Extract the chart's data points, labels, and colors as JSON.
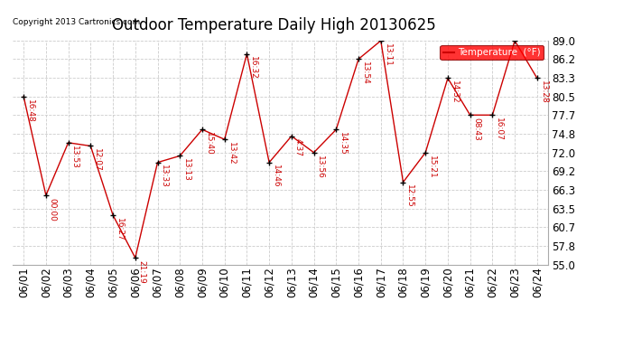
{
  "title": "Outdoor Temperature Daily High 20130625",
  "copyright": "Copyright 2013 Cartronics.com",
  "legend_label": "Temperature  (°F)",
  "dates": [
    "06/01",
    "06/02",
    "06/03",
    "06/04",
    "06/05",
    "06/06",
    "06/07",
    "06/08",
    "06/09",
    "06/10",
    "06/11",
    "06/12",
    "06/13",
    "06/14",
    "06/15",
    "06/16",
    "06/17",
    "06/18",
    "06/19",
    "06/20",
    "06/21",
    "06/22",
    "06/23",
    "06/24"
  ],
  "temps": [
    80.5,
    65.5,
    73.5,
    73.0,
    62.5,
    56.0,
    70.5,
    71.5,
    75.5,
    74.0,
    87.0,
    70.5,
    74.5,
    72.0,
    75.5,
    86.2,
    89.0,
    67.5,
    72.0,
    83.3,
    77.7,
    77.7,
    89.0,
    83.3
  ],
  "times": [
    "16:48",
    "00:00",
    "13:53",
    "12:07",
    "16:27",
    "21:19",
    "13:33",
    "13:13",
    "15:40",
    "13:42",
    "16:32",
    "14:46",
    "4:37",
    "13:56",
    "14:35",
    "13:54",
    "13:11",
    "12:55",
    "15:21",
    "14:32",
    "08:43",
    "16:07",
    "",
    "13:28"
  ],
  "line_color": "#cc0000",
  "marker_color": "#000000",
  "background_color": "#ffffff",
  "grid_color": "#cccccc",
  "ylim": [
    55.0,
    89.0
  ],
  "yticks": [
    55.0,
    57.8,
    60.7,
    63.5,
    66.3,
    69.2,
    72.0,
    74.8,
    77.7,
    80.5,
    83.3,
    86.2,
    89.0
  ],
  "title_fontsize": 12,
  "tick_fontsize": 8.5,
  "label_fontsize": 7,
  "anno_fontsize": 6.5
}
